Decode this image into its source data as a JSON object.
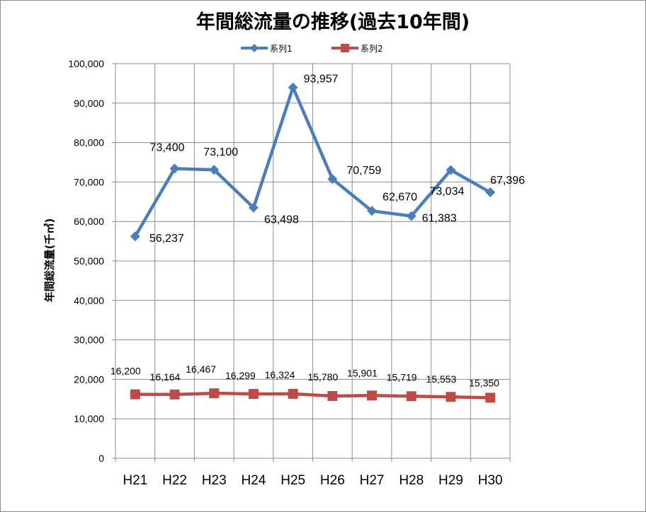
{
  "chart_data": {
    "type": "line",
    "title": "年間総流量の推移(過去10年間)",
    "ylabel": "年間総流量(千㎥)",
    "xlabel": "",
    "categories": [
      "H21",
      "H22",
      "H23",
      "H24",
      "H25",
      "H26",
      "H27",
      "H28",
      "H29",
      "H30"
    ],
    "ylim": [
      0,
      100000
    ],
    "yticks": [
      0,
      10000,
      20000,
      30000,
      40000,
      50000,
      60000,
      70000,
      80000,
      90000,
      100000
    ],
    "ytick_labels": [
      "0",
      "10,000",
      "20,000",
      "30,000",
      "40,000",
      "50,000",
      "60,000",
      "70,000",
      "80,000",
      "90,000",
      "100,000"
    ],
    "grid": true,
    "legend_position": "top",
    "series": [
      {
        "name": "系列1",
        "color": "#4a7ebb",
        "marker": "diamond",
        "values": [
          56237,
          73400,
          73100,
          63498,
          93957,
          70759,
          62670,
          61383,
          73034,
          67396
        ],
        "labels": [
          "56,237",
          "73,400",
          "73,100",
          "63,498",
          "93,957",
          "70,759",
          "62,670",
          "61,383",
          "73,034",
          "67,396"
        ]
      },
      {
        "name": "系列2",
        "color": "#be4b48",
        "marker": "square",
        "values": [
          16200,
          16164,
          16467,
          16299,
          16324,
          15780,
          15901,
          15719,
          15553,
          15350
        ],
        "labels": [
          "16,200",
          "16,164",
          "16,467",
          "16,299",
          "16,324",
          "15,780",
          "15,901",
          "15,719",
          "15,553",
          "15,350"
        ]
      }
    ]
  }
}
